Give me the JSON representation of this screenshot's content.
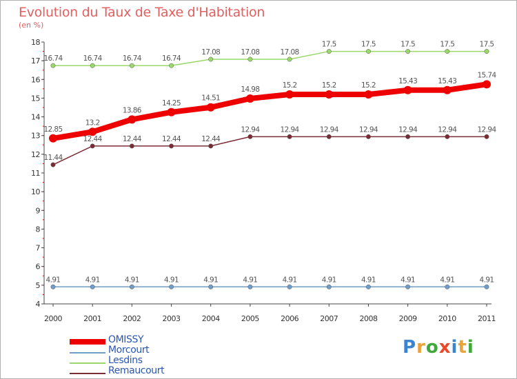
{
  "title": "Evolution du Taux de Taxe d'Habitation",
  "subtitle": "(en %)",
  "logo": {
    "letters": [
      "P",
      "r",
      "o",
      "x",
      "i",
      "t",
      "i"
    ],
    "colors": [
      "#3b84cf",
      "#e8a33a",
      "#3fa83a",
      "#e84a2a",
      "#3b84cf",
      "#e8a33a",
      "#3fa83a"
    ]
  },
  "chart_data": {
    "type": "line",
    "title": "Evolution du Taux de Taxe d'Habitation",
    "ylabel": "(en %)",
    "xlabel": "",
    "x": [
      "2000",
      "2001",
      "2002",
      "2003",
      "2004",
      "2005",
      "2006",
      "2007",
      "2008",
      "2009",
      "2010",
      "2011"
    ],
    "ylim": [
      4,
      18
    ],
    "yticks": [
      "4",
      "5",
      "6",
      "7",
      "8",
      "9",
      "10",
      "11",
      "12",
      "13",
      "14",
      "15",
      "16",
      "17",
      "18"
    ],
    "grid": false,
    "legend_position": "bottom-left",
    "series": [
      {
        "name": "OMISSY",
        "color": "#ee0000",
        "emphasis": true,
        "values": [
          12.85,
          13.2,
          13.86,
          14.25,
          14.51,
          14.98,
          15.2,
          15.2,
          15.2,
          15.43,
          15.43,
          15.74
        ],
        "labels": [
          "12.85",
          "13.2",
          "13.86",
          "14.25",
          "14.51",
          "14.98",
          "15.2",
          "15.2",
          "15.2",
          "15.43",
          "15.43",
          "15.74"
        ]
      },
      {
        "name": "Morcourt",
        "color": "#6e9dc7",
        "emphasis": false,
        "values": [
          4.91,
          4.91,
          4.91,
          4.91,
          4.91,
          4.91,
          4.91,
          4.91,
          4.91,
          4.91,
          4.91,
          4.91
        ],
        "labels": [
          "4.91",
          "4.91",
          "4.91",
          "4.91",
          "4.91",
          "4.91",
          "4.91",
          "4.91",
          "4.91",
          "4.91",
          "4.91",
          "4.91"
        ]
      },
      {
        "name": "Lesdins",
        "color": "#9ad86a",
        "emphasis": false,
        "values": [
          16.74,
          16.74,
          16.74,
          16.74,
          17.08,
          17.08,
          17.08,
          17.5,
          17.5,
          17.5,
          17.5,
          17.5
        ],
        "labels": [
          "16.74",
          "16.74",
          "16.74",
          "16.74",
          "17.08",
          "17.08",
          "17.08",
          "17.5",
          "17.5",
          "17.5",
          "17.5",
          "17.5"
        ]
      },
      {
        "name": "Remaucourt",
        "color": "#7a2c34",
        "emphasis": false,
        "values": [
          11.44,
          12.44,
          12.44,
          12.44,
          12.44,
          12.94,
          12.94,
          12.94,
          12.94,
          12.94,
          12.94,
          12.94
        ],
        "labels": [
          "11.44",
          "12.44",
          "12.44",
          "12.44",
          "12.44",
          "12.94",
          "12.94",
          "12.94",
          "12.94",
          "12.94",
          "12.94",
          "12.94"
        ]
      }
    ]
  }
}
